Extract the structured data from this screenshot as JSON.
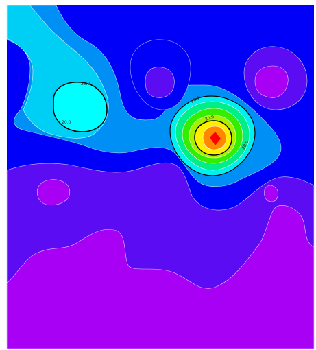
{
  "chart_data": {
    "type": "heatmap",
    "subtype": "filled-contour",
    "colormap_low_to_high": [
      "#a800f5",
      "#5c0cf2",
      "#0000f8",
      "#0090f5",
      "#00cff5",
      "#00f0f0",
      "#00ee88",
      "#33ee00",
      "#ffee00",
      "#ff8800",
      "#ff2200"
    ],
    "regions": [
      {
        "name": "upper-left-high",
        "level": 3,
        "peak_color": "#00ffff"
      },
      {
        "name": "central-peak",
        "level": 10,
        "peak_color": "#ff0000"
      },
      {
        "name": "upper-middle-low",
        "level": 1,
        "peak_color": "#5c0cf2"
      },
      {
        "name": "upper-right-low",
        "level": 0,
        "peak_color": "#a800f5"
      },
      {
        "name": "left-low",
        "level": 0,
        "peak_color": "#a800f5"
      },
      {
        "name": "right-low",
        "level": 0,
        "peak_color": "#a800f5"
      },
      {
        "name": "bottom-low-band",
        "level": 0,
        "peak_color": "#a800f5"
      }
    ],
    "contour_labels": [
      "20.0",
      "20.0",
      "20.0",
      "20.0",
      "20.0"
    ],
    "grid": false,
    "legend": "none"
  }
}
